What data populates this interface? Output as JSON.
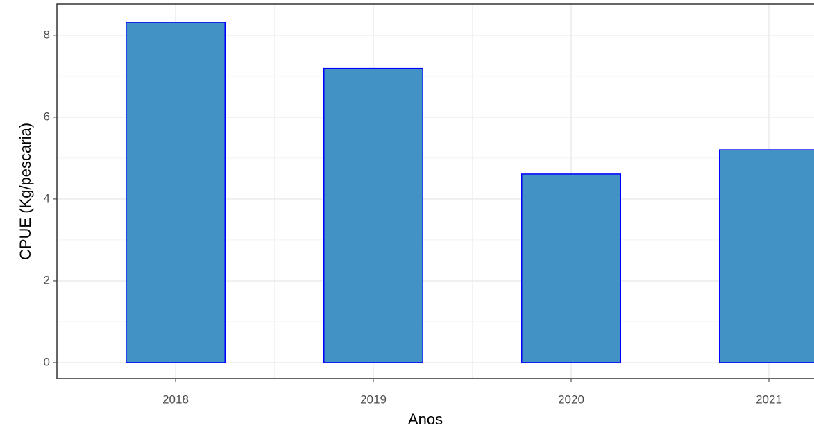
{
  "chart_data": {
    "type": "bar",
    "x_label": "Anos",
    "y_label": "CPUE (Kg/pescaria)",
    "categories": [
      "2018",
      "2019",
      "2020",
      "2021"
    ],
    "values": [
      8.32,
      7.19,
      4.61,
      5.2
    ],
    "color": "#4292c6",
    "edge_color": "#0000ff",
    "ylim": [
      -0.39,
      8.76
    ],
    "yticks": [
      0,
      2,
      4,
      6,
      8
    ],
    "grid": true
  }
}
